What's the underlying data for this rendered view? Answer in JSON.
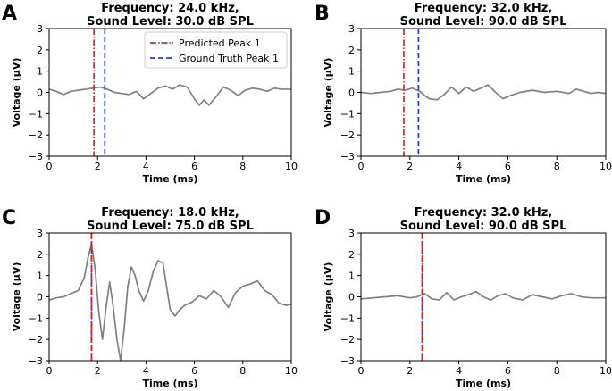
{
  "colors": {
    "signal": "#808080",
    "predicted": "#d62728",
    "ground_truth": "#1f3fd6",
    "axes": "#000000"
  },
  "legend": {
    "predicted_label": "Predicted Peak 1",
    "ground_truth_label": "Ground Truth Peak 1",
    "placement": "upper-right of panel A"
  },
  "chart_data": [
    {
      "type": "line",
      "panel": "A",
      "title_line1": "Frequency: 24.0 kHz,",
      "title_line2": "Sound Level: 30.0 dB SPL",
      "xlabel": "Time (ms)",
      "ylabel": "Voltage (μV)",
      "xlim": [
        0,
        10
      ],
      "ylim": [
        -3,
        3
      ],
      "xticks": [
        "0",
        "2",
        "4",
        "6",
        "8",
        "10"
      ],
      "yticks": [
        "3",
        "2",
        "1",
        "0",
        "−1",
        "−2",
        "−3"
      ],
      "predicted_peak_ms": 1.85,
      "ground_truth_peak_ms": 2.3,
      "series": [
        {
          "x": [
            0,
            0.3,
            0.6,
            0.9,
            1.2,
            1.5,
            1.8,
            2.1,
            2.4,
            2.7,
            3.0,
            3.3,
            3.6,
            3.9,
            4.2,
            4.5,
            4.8,
            5.1,
            5.4,
            5.7,
            6.0,
            6.2,
            6.4,
            6.6,
            6.9,
            7.2,
            7.5,
            7.8,
            8.1,
            8.4,
            8.7,
            9.0,
            9.3,
            9.6,
            10.0
          ],
          "y": [
            0.15,
            0.05,
            -0.1,
            0.05,
            0.1,
            0.15,
            0.2,
            0.25,
            0.15,
            0.0,
            -0.05,
            -0.1,
            0.05,
            -0.3,
            -0.05,
            0.2,
            0.3,
            0.15,
            0.35,
            0.25,
            -0.3,
            -0.6,
            -0.35,
            -0.6,
            -0.2,
            0.25,
            0.1,
            -0.15,
            0.1,
            0.2,
            0.15,
            0.05,
            0.2,
            0.15,
            0.15
          ]
        }
      ]
    },
    {
      "type": "line",
      "panel": "B",
      "title_line1": "Frequency: 32.0 kHz,",
      "title_line2": "Sound Level: 90.0 dB SPL",
      "xlabel": "Time (ms)",
      "ylabel": "Voltage (μV)",
      "xlim": [
        0,
        10
      ],
      "ylim": [
        -3,
        3
      ],
      "xticks": [
        "0",
        "2",
        "4",
        "6",
        "8",
        "10"
      ],
      "yticks": [
        "3",
        "2",
        "1",
        "0",
        "−1",
        "−2",
        "−3"
      ],
      "predicted_peak_ms": 1.75,
      "ground_truth_peak_ms": 2.35,
      "series": [
        {
          "x": [
            0,
            0.4,
            0.8,
            1.2,
            1.5,
            1.8,
            2.1,
            2.4,
            2.6,
            2.8,
            3.1,
            3.4,
            3.7,
            4.0,
            4.3,
            4.6,
            4.9,
            5.2,
            5.5,
            5.8,
            6.1,
            6.5,
            7.0,
            7.5,
            8.0,
            8.5,
            8.8,
            9.1,
            9.4,
            9.7,
            10.0
          ],
          "y": [
            0.0,
            -0.05,
            0.0,
            0.05,
            0.15,
            0.1,
            0.2,
            0.05,
            -0.15,
            -0.3,
            -0.35,
            -0.1,
            0.25,
            -0.05,
            0.25,
            0.05,
            0.2,
            0.35,
            0.0,
            -0.3,
            -0.15,
            0.0,
            0.1,
            0.0,
            0.05,
            -0.05,
            0.15,
            0.05,
            -0.05,
            0.0,
            -0.05
          ]
        }
      ]
    },
    {
      "type": "line",
      "panel": "C",
      "title_line1": "Frequency: 18.0 kHz,",
      "title_line2": "Sound Level: 75.0 dB SPL",
      "xlabel": "Time (ms)",
      "ylabel": "Voltage (μV)",
      "xlim": [
        0,
        10
      ],
      "ylim": [
        -3,
        3
      ],
      "xticks": [
        "0",
        "2",
        "4",
        "6",
        "8",
        "10"
      ],
      "yticks": [
        "3",
        "2",
        "1",
        "0",
        "−1",
        "−2",
        "−3"
      ],
      "predicted_peak_ms": 1.75,
      "ground_truth_peak_ms": 1.75,
      "series": [
        {
          "x": [
            0,
            0.3,
            0.6,
            0.9,
            1.2,
            1.45,
            1.6,
            1.75,
            1.9,
            2.05,
            2.2,
            2.35,
            2.5,
            2.65,
            2.8,
            2.95,
            3.1,
            3.25,
            3.4,
            3.55,
            3.7,
            3.9,
            4.1,
            4.3,
            4.5,
            4.7,
            4.85,
            5.0,
            5.2,
            5.4,
            5.6,
            5.9,
            6.2,
            6.5,
            6.8,
            7.1,
            7.4,
            7.7,
            8.0,
            8.3,
            8.6,
            8.9,
            9.2,
            9.5,
            9.8,
            10.0
          ],
          "y": [
            -0.15,
            -0.05,
            0.0,
            0.15,
            0.3,
            0.9,
            1.8,
            2.5,
            1.3,
            -0.7,
            -2.0,
            -0.5,
            0.7,
            -0.5,
            -2.0,
            -3.0,
            -1.5,
            0.5,
            1.4,
            1.0,
            0.3,
            -0.2,
            0.3,
            1.2,
            1.7,
            1.6,
            0.5,
            -0.6,
            -0.9,
            -0.6,
            -0.4,
            -0.25,
            0.05,
            -0.1,
            0.3,
            0.0,
            -0.5,
            0.2,
            0.5,
            0.6,
            0.75,
            0.3,
            0.1,
            -0.3,
            -0.4,
            -0.35
          ]
        }
      ]
    },
    {
      "type": "line",
      "panel": "D",
      "title_line1": "Frequency: 32.0 kHz,",
      "title_line2": "Sound Level: 90.0 dB SPL",
      "xlabel": "Time (ms)",
      "ylabel": "Voltage (μV)",
      "xlim": [
        0,
        10
      ],
      "ylim": [
        -3,
        3
      ],
      "xticks": [
        "0",
        "2",
        "4",
        "6",
        "8",
        "10"
      ],
      "yticks": [
        "3",
        "2",
        "1",
        "0",
        "−1",
        "−2",
        "−3"
      ],
      "predicted_peak_ms": 2.5,
      "ground_truth_peak_ms": 2.5,
      "series": [
        {
          "x": [
            0,
            0.5,
            1.0,
            1.5,
            2.0,
            2.3,
            2.6,
            2.9,
            3.2,
            3.5,
            3.8,
            4.1,
            4.4,
            4.7,
            5.0,
            5.3,
            5.6,
            5.9,
            6.2,
            6.6,
            7.0,
            7.4,
            7.8,
            8.2,
            8.6,
            9.0,
            9.4,
            9.8,
            10.0
          ],
          "y": [
            -0.1,
            -0.05,
            0.0,
            0.05,
            -0.05,
            0.0,
            0.15,
            -0.1,
            -0.15,
            0.2,
            -0.15,
            0.0,
            0.1,
            0.25,
            0.0,
            -0.15,
            0.05,
            0.15,
            -0.05,
            -0.15,
            0.1,
            0.0,
            -0.1,
            0.05,
            0.15,
            0.0,
            -0.05,
            -0.05,
            -0.05
          ]
        }
      ]
    }
  ]
}
